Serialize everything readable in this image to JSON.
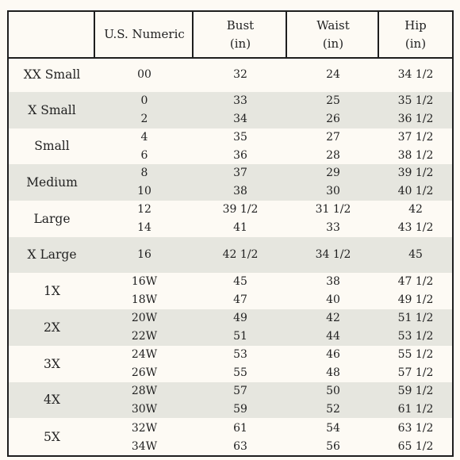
{
  "table": {
    "headers": [
      {
        "line1": "",
        "line2": ""
      },
      {
        "line1": "U.S. Numeric",
        "line2": ""
      },
      {
        "line1": "Bust",
        "line2": "(in)"
      },
      {
        "line1": "Waist",
        "line2": "(in)"
      },
      {
        "line1": "Hip",
        "line2": "(in)"
      }
    ],
    "rows": [
      {
        "label": "XX Small",
        "numeric": [
          "00"
        ],
        "bust": [
          "32"
        ],
        "waist": [
          "24"
        ],
        "hip": [
          "34 1/2"
        ]
      },
      {
        "label": "X Small",
        "numeric": [
          "0",
          "2"
        ],
        "bust": [
          "33",
          "34"
        ],
        "waist": [
          "25",
          "26"
        ],
        "hip": [
          "35 1/2",
          "36 1/2"
        ]
      },
      {
        "label": "Small",
        "numeric": [
          "4",
          "6"
        ],
        "bust": [
          "35",
          "36"
        ],
        "waist": [
          "27",
          "28"
        ],
        "hip": [
          "37 1/2",
          "38 1/2"
        ]
      },
      {
        "label": "Medium",
        "numeric": [
          "8",
          "10"
        ],
        "bust": [
          "37",
          "38"
        ],
        "waist": [
          "29",
          "30"
        ],
        "hip": [
          "39 1/2",
          "40 1/2"
        ]
      },
      {
        "label": "Large",
        "numeric": [
          "12",
          "14"
        ],
        "bust": [
          "39 1/2",
          "41"
        ],
        "waist": [
          "31 1/2",
          "33"
        ],
        "hip": [
          "42",
          "43 1/2"
        ]
      },
      {
        "label": "X Large",
        "numeric": [
          "16"
        ],
        "bust": [
          "42 1/2"
        ],
        "waist": [
          "34 1/2"
        ],
        "hip": [
          "45"
        ]
      },
      {
        "label": "1X",
        "numeric": [
          "16W",
          "18W"
        ],
        "bust": [
          "45",
          "47"
        ],
        "waist": [
          "38",
          "40"
        ],
        "hip": [
          "47 1/2",
          "49 1/2"
        ]
      },
      {
        "label": "2X",
        "numeric": [
          "20W",
          "22W"
        ],
        "bust": [
          "49",
          "51"
        ],
        "waist": [
          "42",
          "44"
        ],
        "hip": [
          "51 1/2",
          "53 1/2"
        ]
      },
      {
        "label": "3X",
        "numeric": [
          "24W",
          "26W"
        ],
        "bust": [
          "53",
          "55"
        ],
        "waist": [
          "46",
          "48"
        ],
        "hip": [
          "55 1/2",
          "57 1/2"
        ]
      },
      {
        "label": "4X",
        "numeric": [
          "28W",
          "30W"
        ],
        "bust": [
          "57",
          "59"
        ],
        "waist": [
          "50",
          "52"
        ],
        "hip": [
          "59 1/2",
          "61 1/2"
        ]
      },
      {
        "label": "5X",
        "numeric": [
          "32W",
          "34W"
        ],
        "bust": [
          "61",
          "63"
        ],
        "waist": [
          "54",
          "56"
        ],
        "hip": [
          "63 1/2",
          "65 1/2"
        ]
      }
    ]
  }
}
